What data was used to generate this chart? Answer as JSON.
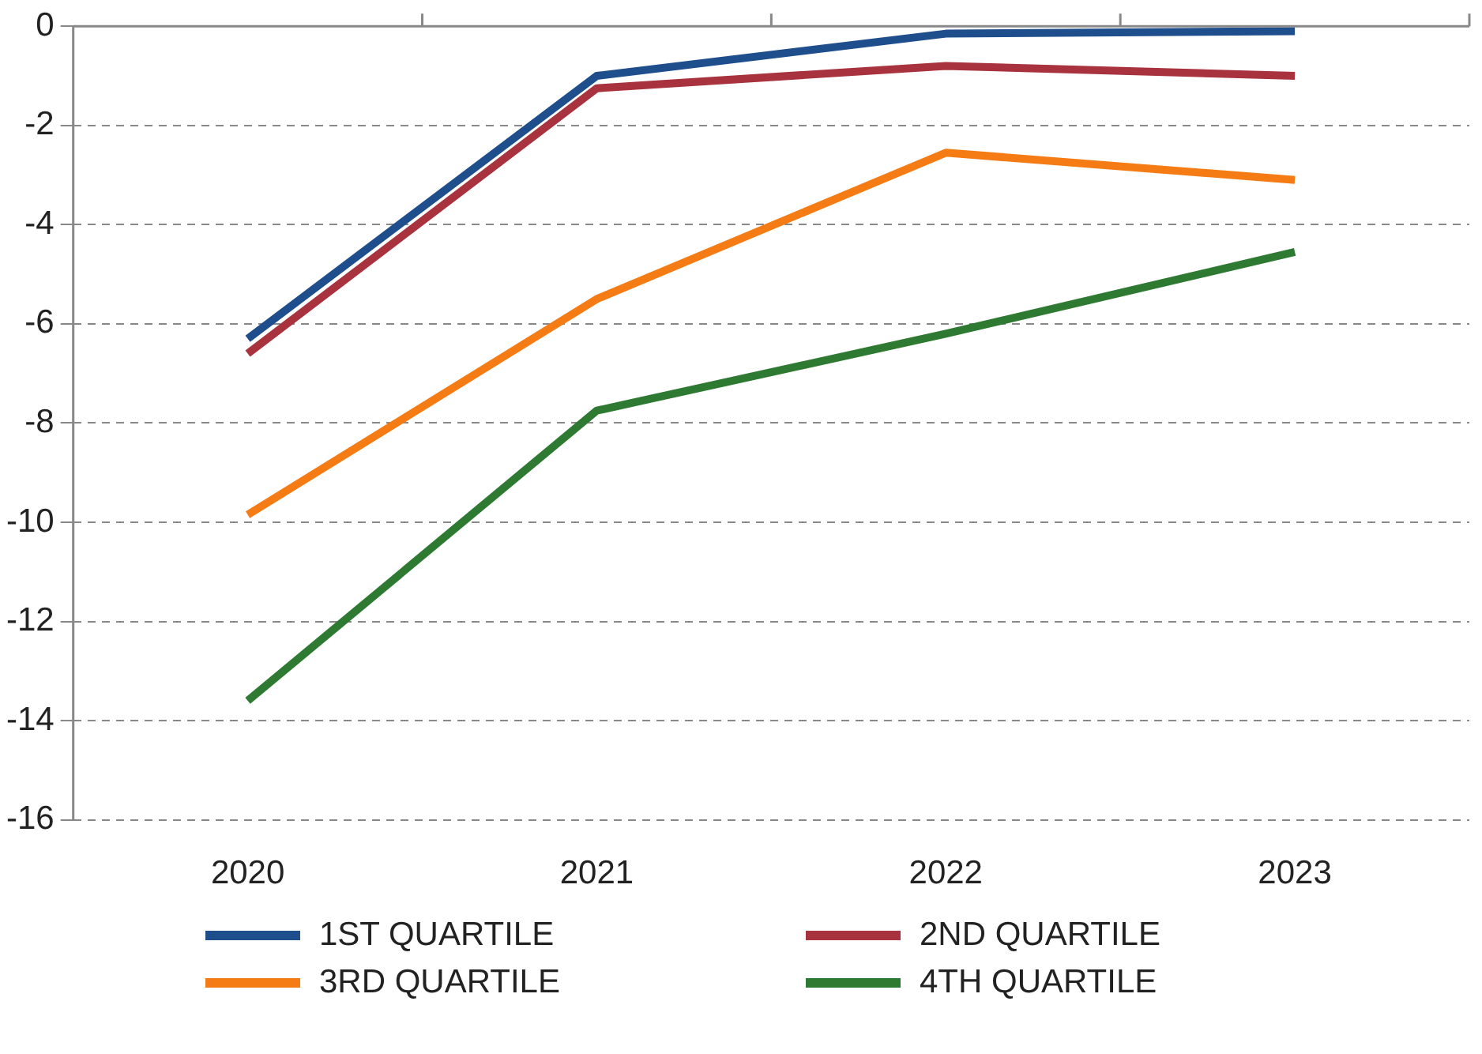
{
  "chart_data": {
    "type": "line",
    "categories": [
      "2020",
      "2021",
      "2022",
      "2023"
    ],
    "series": [
      {
        "name": "1ST QUARTILE",
        "color": "#1f4e8c",
        "values": [
          -6.3,
          -1.0,
          -0.15,
          -0.1
        ]
      },
      {
        "name": "2ND QUARTILE",
        "color": "#a8323e",
        "values": [
          -6.6,
          -1.25,
          -0.8,
          -1.0
        ]
      },
      {
        "name": "3RD QUARTILE",
        "color": "#f57c14",
        "values": [
          -9.85,
          -5.5,
          -2.55,
          -3.1
        ]
      },
      {
        "name": "4TH QUARTILE",
        "color": "#2e7a32",
        "values": [
          -13.6,
          -7.75,
          -6.2,
          -4.55
        ]
      }
    ],
    "ylim": [
      -16,
      0
    ],
    "yticks": [
      -16,
      -14,
      -12,
      -10,
      -8,
      -6,
      -4,
      -2,
      0
    ],
    "grid": "y",
    "legend": "bottom",
    "marker": "none",
    "line_style": "solid"
  }
}
